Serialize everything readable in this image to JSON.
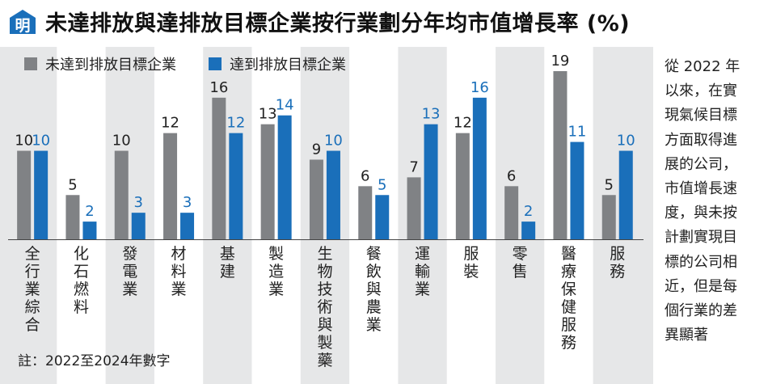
{
  "header": {
    "logo_char": "明",
    "title": "未達排放與達排放目標企業按行業劃分年均市值增長率 (%)"
  },
  "colors": {
    "series1": "#808285",
    "series2": "#1a6fba",
    "logo": "#1a6fba",
    "panel": "#e6e7e8"
  },
  "chart_data": {
    "type": "bar",
    "categories": [
      "全行業綜合",
      "化石燃料",
      "發電業",
      "材料業",
      "基建",
      "製造業",
      "生物技術與製藥",
      "餐飲與農業",
      "運輸業",
      "服裝",
      "零售",
      "醫療保健服務",
      "服務"
    ],
    "series": [
      {
        "name": "未達到排放目標企業",
        "values": [
          10,
          5,
          10,
          12,
          16,
          13,
          9,
          6,
          7,
          12,
          6,
          19,
          5
        ]
      },
      {
        "name": "達到排放目標企業",
        "values": [
          10,
          2,
          3,
          3,
          12,
          14,
          10,
          5,
          13,
          16,
          2,
          11,
          10
        ]
      }
    ],
    "ylim": [
      0,
      19
    ]
  },
  "note": "註：2022至2024年數字",
  "side_text": [
    "從 2022 年",
    "以來，在實",
    "現氣候目標",
    "方面取得進",
    "展的公司，",
    "市值增長速",
    "度，與未按",
    "計劃實現目",
    "標的公司相",
    "近，但是每",
    "個行業的差",
    "異顯著"
  ]
}
